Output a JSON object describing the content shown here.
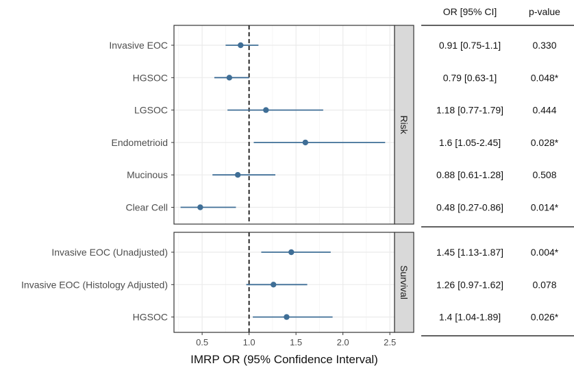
{
  "chart_data": {
    "type": "forest",
    "xlabel": "IMRP OR (95% Confidence Interval)",
    "xlim": [
      0.2,
      2.55
    ],
    "x_ticks": [
      "0.5",
      "1.0",
      "1.5",
      "2.0",
      "2.5"
    ],
    "x_tick_values": [
      0.5,
      1.0,
      1.5,
      2.0,
      2.5
    ],
    "reference_line": 1.0,
    "grid": true,
    "table_headers": {
      "or": "OR [95% CI]",
      "p": "p-value"
    },
    "colors": {
      "point": "#3f6e96",
      "ci": "#3f6e96",
      "panel_border": "#333333",
      "strip": "#d9d9d9",
      "grid": "#ebebeb"
    },
    "panels": [
      {
        "strip": "Risk",
        "rows": [
          {
            "label": "Invasive EOC",
            "or": 0.91,
            "lo": 0.75,
            "hi": 1.1,
            "or_text": "0.91 [0.75-1.1]",
            "p_text": "0.330"
          },
          {
            "label": "HGSOC",
            "or": 0.79,
            "lo": 0.63,
            "hi": 1.0,
            "or_text": "0.79 [0.63-1]",
            "p_text": "0.048*"
          },
          {
            "label": "LGSOC",
            "or": 1.18,
            "lo": 0.77,
            "hi": 1.79,
            "or_text": "1.18 [0.77-1.79]",
            "p_text": "0.444"
          },
          {
            "label": "Endometrioid",
            "or": 1.6,
            "lo": 1.05,
            "hi": 2.45,
            "or_text": "1.6 [1.05-2.45]",
            "p_text": "0.028*"
          },
          {
            "label": "Mucinous",
            "or": 0.88,
            "lo": 0.61,
            "hi": 1.28,
            "or_text": "0.88 [0.61-1.28]",
            "p_text": "0.508"
          },
          {
            "label": "Clear Cell",
            "or": 0.48,
            "lo": 0.27,
            "hi": 0.86,
            "or_text": "0.48 [0.27-0.86]",
            "p_text": "0.014*"
          }
        ]
      },
      {
        "strip": "Survival",
        "rows": [
          {
            "label": "Invasive EOC (Unadjusted)",
            "or": 1.45,
            "lo": 1.13,
            "hi": 1.87,
            "or_text": "1.45 [1.13-1.87]",
            "p_text": "0.004*"
          },
          {
            "label": "Invasive EOC (Histology Adjusted)",
            "or": 1.26,
            "lo": 0.97,
            "hi": 1.62,
            "or_text": "1.26 [0.97-1.62]",
            "p_text": "0.078"
          },
          {
            "label": "HGSOC",
            "or": 1.4,
            "lo": 1.04,
            "hi": 1.89,
            "or_text": "1.4 [1.04-1.89]",
            "p_text": "0.026*"
          }
        ]
      }
    ]
  }
}
